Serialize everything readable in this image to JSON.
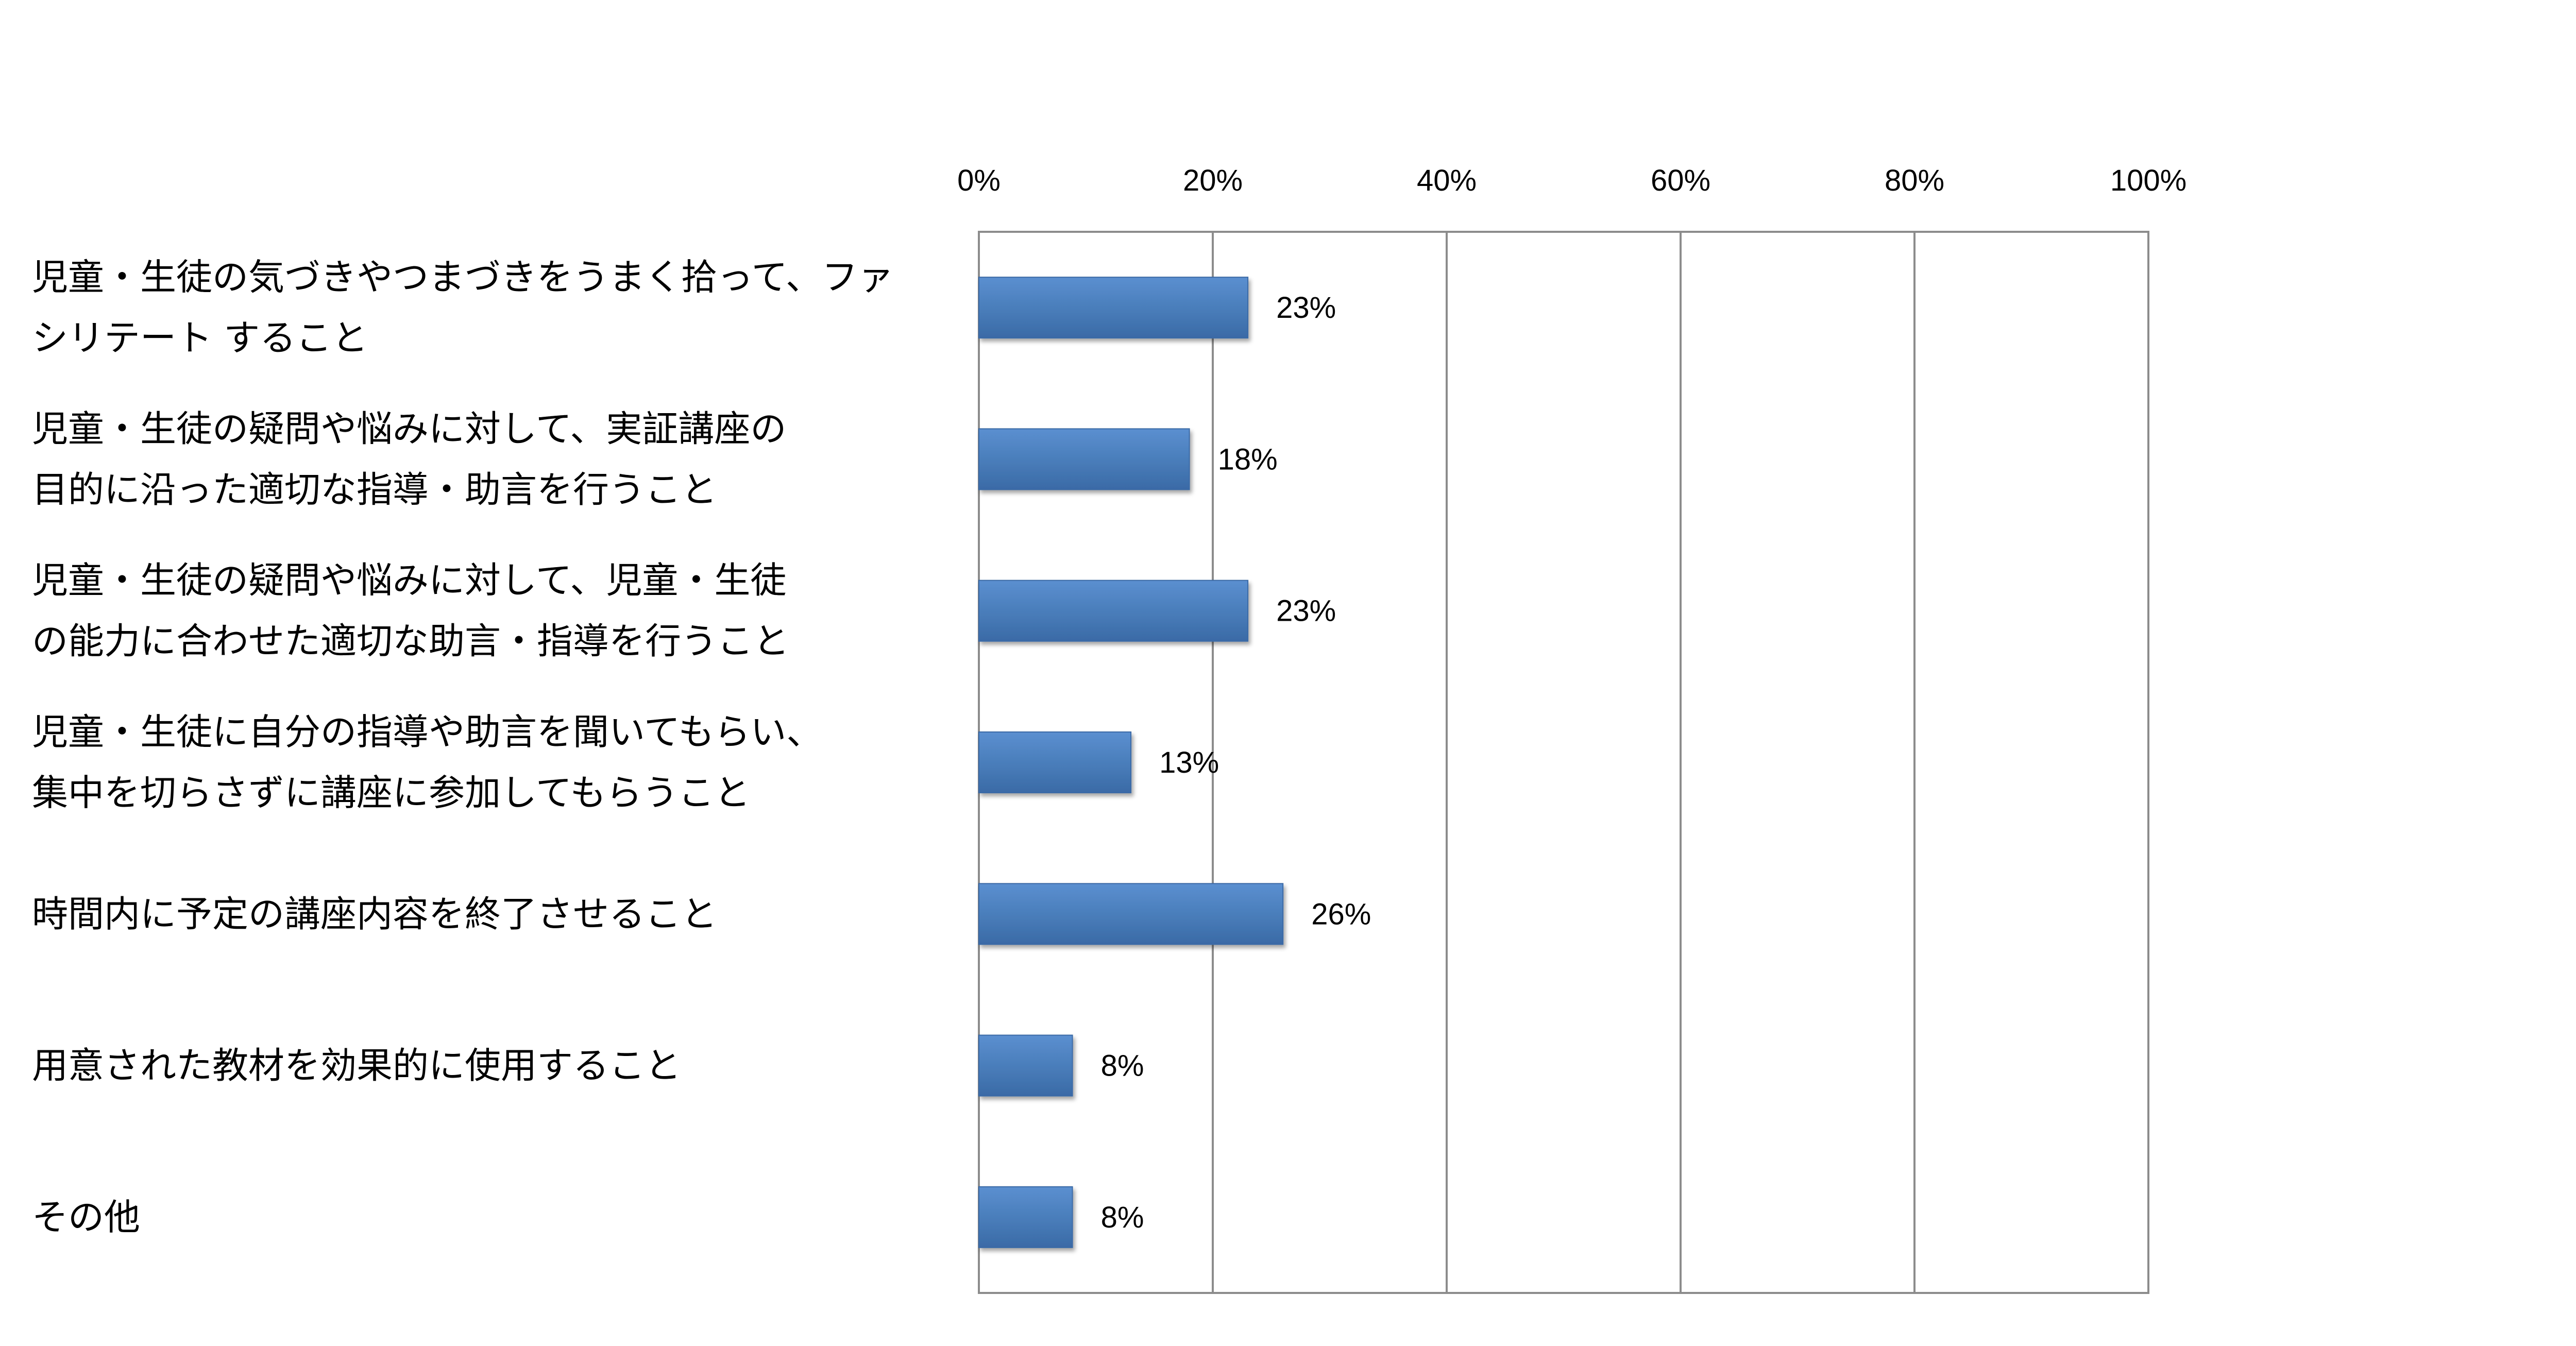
{
  "chart_data": {
    "type": "bar",
    "orientation": "horizontal",
    "categories": [
      [
        "児童・生徒の気づきやつまづきをうまく拾って、ファ",
        "シリテート すること"
      ],
      [
        "児童・生徒の疑問や悩みに対して、実証講座の",
        "目的に沿った適切な指導・助言を行うこと"
      ],
      [
        "児童・生徒の疑問や悩みに対して、児童・生徒",
        "の能力に合わせた適切な助言・指導を行うこと"
      ],
      [
        "児童・生徒に自分の指導や助言を聞いてもらい、",
        "集中を切らさずに講座に参加してもらうこと"
      ],
      [
        "時間内に予定の講座内容を終了させること"
      ],
      [
        "用意された教材を効果的に使用すること"
      ],
      [
        "その他"
      ]
    ],
    "values": [
      23,
      18,
      23,
      13,
      26,
      8,
      8
    ],
    "data_labels": [
      "23%",
      "18%",
      "23%",
      "13%",
      "26%",
      "8%",
      "8%"
    ],
    "x_ticks": [
      "0%",
      "20%",
      "40%",
      "60%",
      "80%",
      "100%"
    ],
    "xlim": [
      0,
      100
    ],
    "grid": true,
    "axis_position": "top",
    "legend": "none",
    "colors": {
      "bar": "#4a7ebb",
      "bar_edge": "#3a6aa6",
      "grid": "#8c8c8c",
      "text": "#000000"
    }
  }
}
